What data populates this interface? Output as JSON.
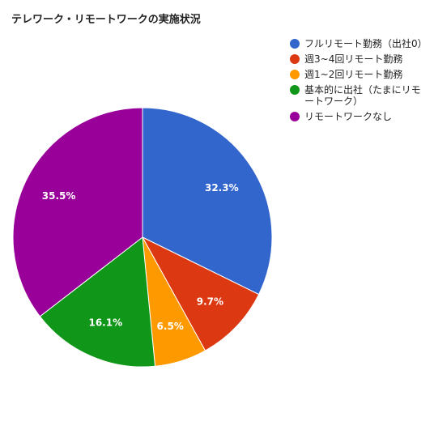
{
  "chart_data": {
    "type": "pie",
    "title": "テレワーク・リモートワークの実施状況",
    "legend_position": "right",
    "start_angle_deg": 0,
    "direction": "clockwise",
    "slices": [
      {
        "label": "フルリモート勤務（出社0）",
        "value": 32.3,
        "value_label": "32.3%",
        "color": "#3366cc"
      },
      {
        "label": "週3~4回リモート勤務",
        "value": 9.7,
        "value_label": "9.7%",
        "color": "#dc3912"
      },
      {
        "label": "週1~2回リモート勤務",
        "value": 6.5,
        "value_label": "6.5%",
        "color": "#ff9900"
      },
      {
        "label": "基本的に出社（たまにリモートワーク）",
        "value": 16.1,
        "value_label": "16.1%",
        "color": "#109618"
      },
      {
        "label": "リモートワークなし",
        "value": 35.5,
        "value_label": "35.5%",
        "color": "#990099"
      }
    ]
  }
}
